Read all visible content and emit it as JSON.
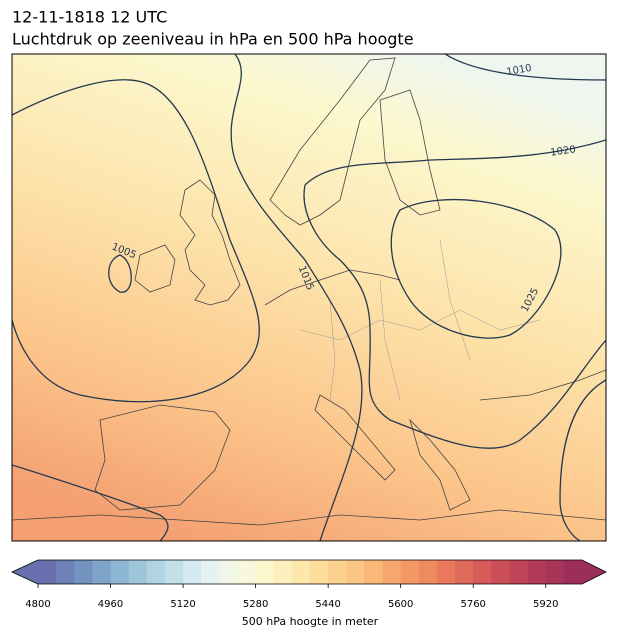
{
  "chart_data": {
    "type": "map",
    "title": "12-11-1818 12 UTC",
    "subtitle": "Luchtdruk op zeeniveau in hPa en 500 hPa hoogte",
    "contour_labels": [
      1010,
      1020,
      1005,
      1015,
      1025
    ],
    "colorbar": {
      "label": "500 hPa hoogte in meter",
      "lim": [
        4800,
        6000
      ],
      "ticks": [
        4800,
        4960,
        5120,
        5280,
        5440,
        5600,
        5760,
        5920
      ],
      "colors": [
        "#6a6fb0",
        "#6e82b8",
        "#7493c0",
        "#7ea5c8",
        "#8cb6d2",
        "#9dc6da",
        "#b0d4e2",
        "#c3e0e8",
        "#d5eaef",
        "#e5f2f2",
        "#f0f6e8",
        "#f7f8dc",
        "#fbf6cc",
        "#fdf0bd",
        "#fde7ad",
        "#fddd9e",
        "#fcd190",
        "#fbc583",
        "#f9b778",
        "#f6a86e",
        "#f39966",
        "#ee8960",
        "#e8795c",
        "#e06a5a",
        "#d65b59",
        "#cc4e58",
        "#c04358",
        "#b33a59",
        "#a8345a",
        "#9c2f5a"
      ]
    }
  }
}
